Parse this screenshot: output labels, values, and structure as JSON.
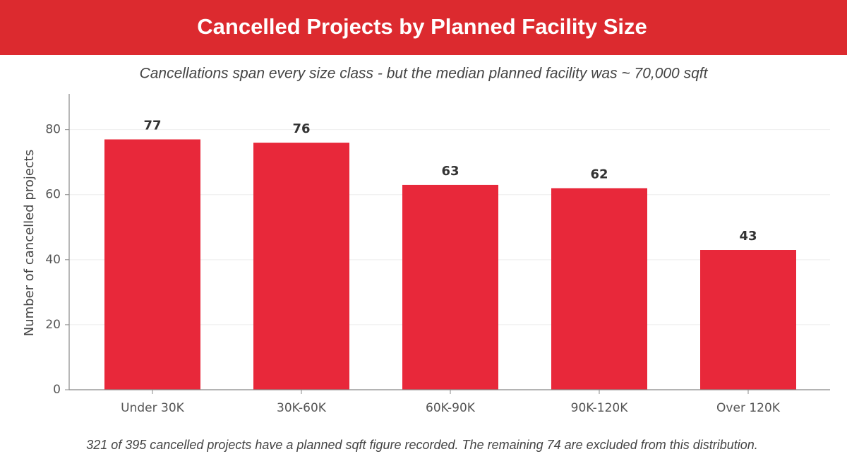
{
  "chart_data": {
    "type": "bar",
    "title": "Cancelled Projects by Planned Facility Size",
    "subtitle": "Cancellations span every size class - but the median planned facility was ~ 70,000 sqft",
    "y_label": "Number of cancelled projects",
    "footnote": "321 of 395 cancelled projects have a planned sqft figure recorded. The remaining 74 are excluded from this distribution.",
    "categories": [
      "Under 30K",
      "30K-60K",
      "60K-90K",
      "90K-120K",
      "Over 120K"
    ],
    "values": [
      77,
      76,
      63,
      62,
      43
    ],
    "color": "#e8283a",
    "ylim": [
      0,
      91
    ],
    "yticks": [
      0,
      20,
      40,
      60,
      80
    ],
    "grid": true
  }
}
